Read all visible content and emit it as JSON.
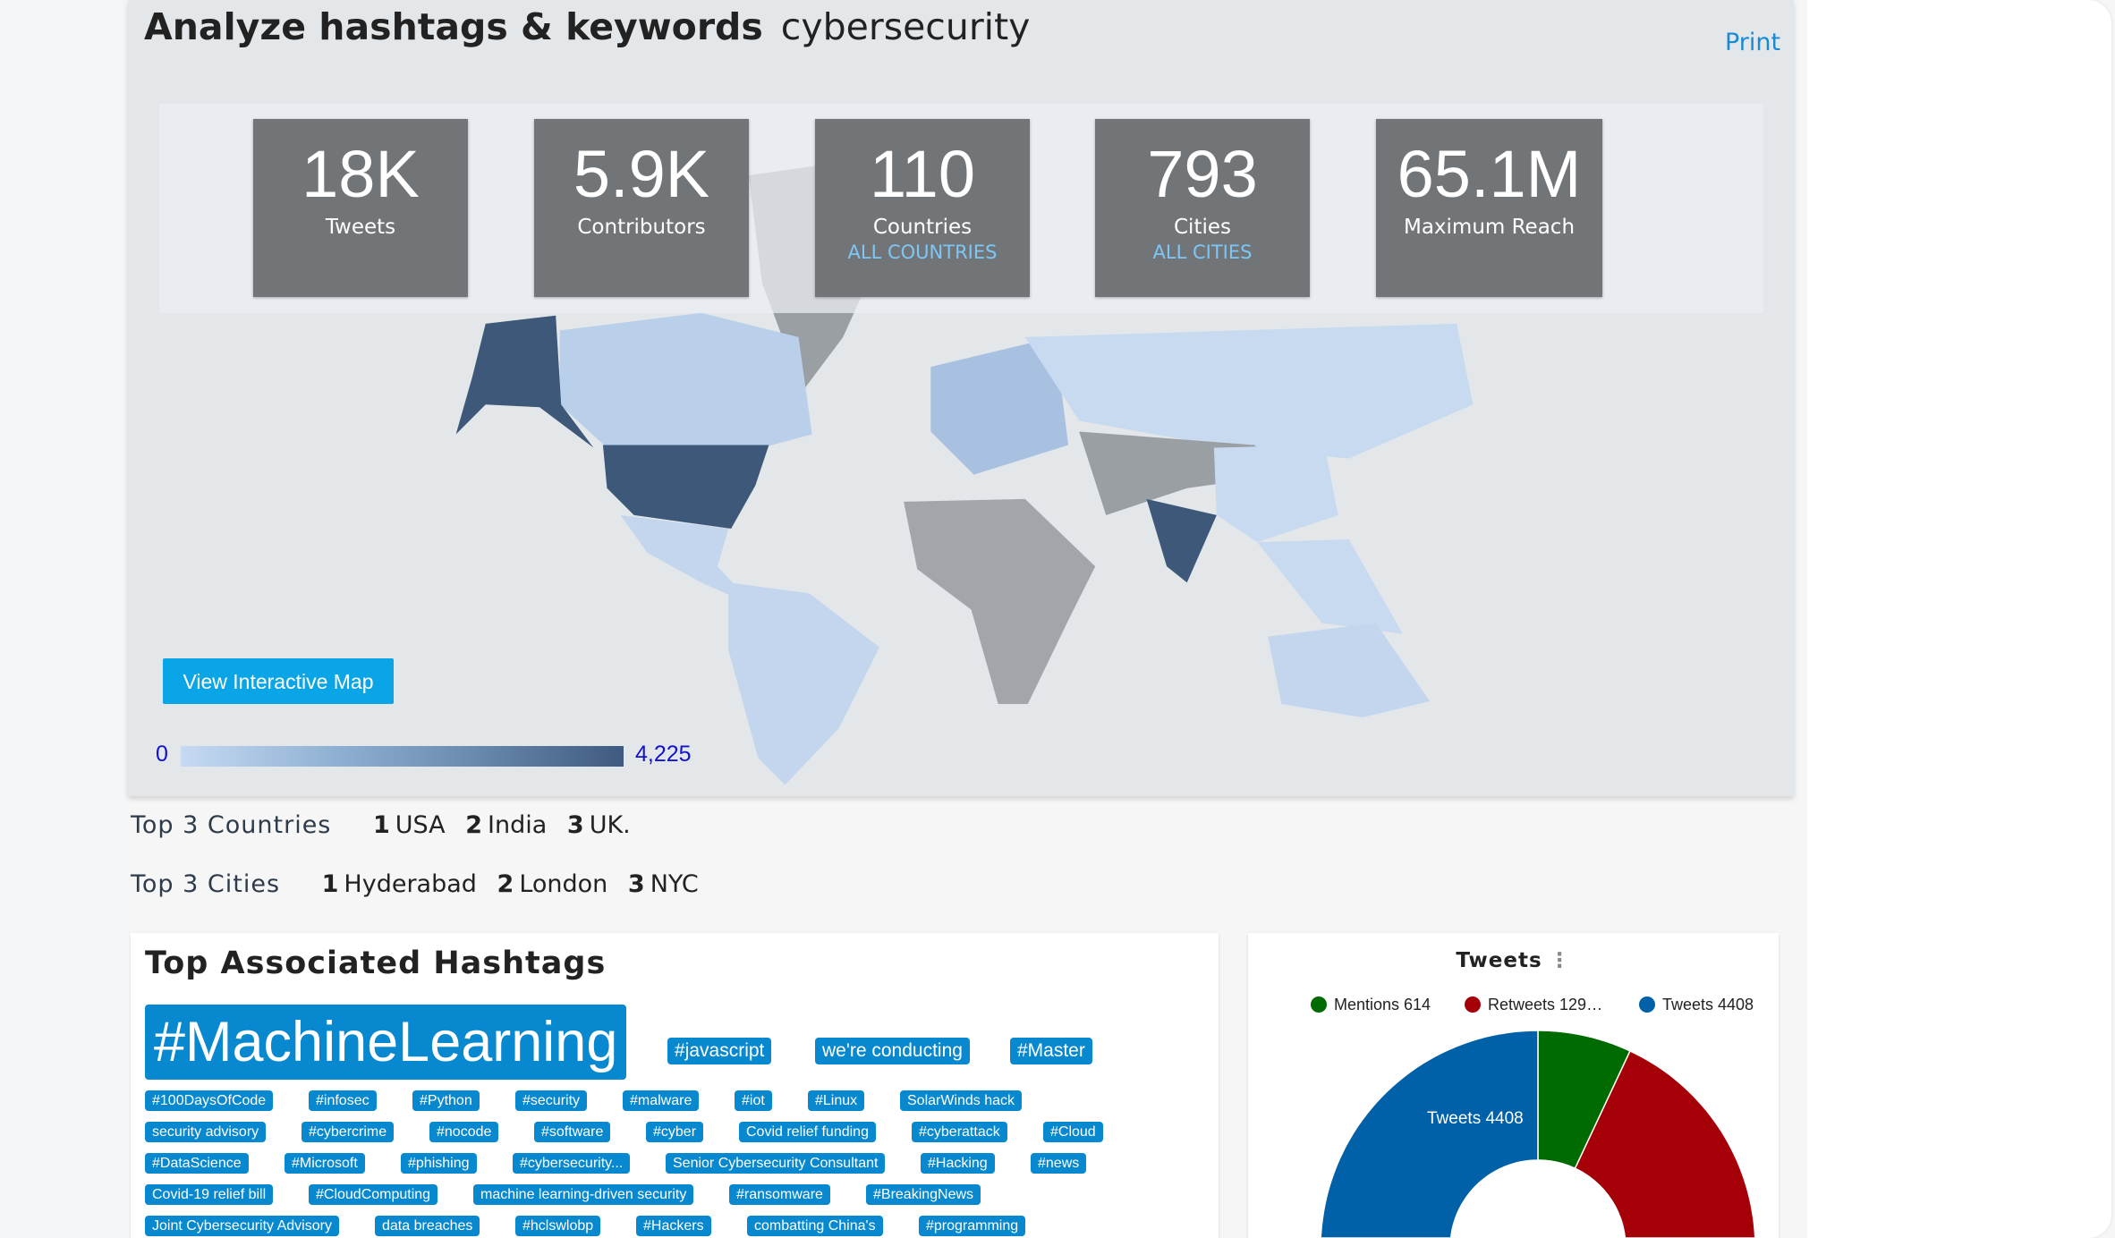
{
  "header": {
    "title": "Analyze hashtags & keywords",
    "keyword": "cybersecurity",
    "print_label": "Print"
  },
  "stats": [
    {
      "value": "18K",
      "label": "Tweets"
    },
    {
      "value": "5.9K",
      "label": "Contributors"
    },
    {
      "value": "110",
      "label": "Countries",
      "link": "ALL COUNTRIES"
    },
    {
      "value": "793",
      "label": "Cities",
      "link": "ALL CITIES"
    },
    {
      "value": "65.1M",
      "label": "Maximum Reach"
    }
  ],
  "map": {
    "button_label": "View Interactive Map",
    "scale_min": "0",
    "scale_max": "4,225",
    "colors": {
      "low": "#c6daf2",
      "high": "#3f5a80",
      "no_data": "#9a9fa4"
    }
  },
  "top_countries": {
    "label": "Top 3 Countries",
    "items": [
      {
        "rank": "1",
        "name": "USA"
      },
      {
        "rank": "2",
        "name": "India"
      },
      {
        "rank": "3",
        "name": "UK."
      }
    ]
  },
  "top_cities": {
    "label": "Top 3 Cities",
    "items": [
      {
        "rank": "1",
        "name": "Hyderabad"
      },
      {
        "rank": "2",
        "name": "London"
      },
      {
        "rank": "3",
        "name": "NYC"
      }
    ]
  },
  "hashtags": {
    "title": "Top Associated Hashtags",
    "accent": "#0888cf",
    "big": "#MachineLearning",
    "medium": [
      "#javascript",
      "we're conducting",
      "#Master"
    ],
    "rows": [
      [
        "#100DaysOfCode",
        "#infosec",
        "#Python",
        "#security",
        "#malware",
        "#iot",
        "#Linux",
        "SolarWinds hack"
      ],
      [
        "security advisory",
        "#cybercrime",
        "#nocode",
        "#software",
        "#cyber",
        "Covid relief funding",
        "#cyberattack",
        "#Cloud"
      ],
      [
        "#DataScience",
        "#Microsoft",
        "#phishing",
        "#cybersecurity...",
        "Senior Cybersecurity Consultant",
        "#Hacking",
        "#news"
      ],
      [
        "Covid-19 relief bill",
        "#CloudComputing",
        "machine learning-driven security",
        "#ransomware",
        "#BreakingNews"
      ],
      [
        "Joint Cybersecurity Advisory",
        "data breaches",
        "#hclswlobp",
        "#Hackers",
        "combatting China's",
        "#programming"
      ]
    ]
  },
  "tweets_chart": {
    "title": "Tweets",
    "menu_icon": "vertical-dots-icon",
    "chart_data": {
      "type": "pie",
      "variant": "semi-donut",
      "series": [
        {
          "name": "Mentions",
          "label": "Mentions 614",
          "value": 614,
          "color": "#006b00"
        },
        {
          "name": "Retweets",
          "label": "Retweets 129…",
          "value": null,
          "color": "#a50008"
        },
        {
          "name": "Tweets",
          "label": "Tweets 4408",
          "value": 4408,
          "color": "#0061a8"
        }
      ],
      "data_labels": [
        "Tweets 4408"
      ],
      "legend": "top"
    }
  }
}
